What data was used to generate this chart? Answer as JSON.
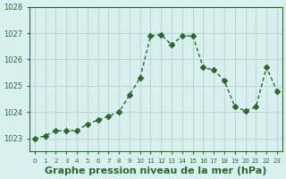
{
  "x": [
    0,
    1,
    2,
    3,
    4,
    5,
    6,
    7,
    8,
    9,
    10,
    11,
    12,
    13,
    14,
    15,
    16,
    17,
    18,
    19,
    20,
    21,
    22,
    23
  ],
  "y": [
    1023.0,
    1023.1,
    1023.3,
    1023.3,
    1023.3,
    1023.55,
    1023.7,
    1023.85,
    1024.0,
    1024.65,
    1025.3,
    1026.9,
    1026.95,
    1026.55,
    1026.9,
    1026.9,
    1025.7,
    1025.6,
    1025.2,
    1024.2,
    1024.05,
    1024.2,
    1025.7,
    1024.8
  ],
  "line_color": "#2d6b2d",
  "marker": "D",
  "marker_size": 3,
  "bg_color": "#d8f0f0",
  "grid_color": "#c0d8d8",
  "xlabel": "Graphe pression niveau de la mer (hPa)",
  "xlabel_fontsize": 8,
  "xlabel_color": "#2d6b2d",
  "tick_color": "#2d6b2d",
  "ylim": [
    1022.5,
    1027.5
  ],
  "yticks": [
    1023,
    1024,
    1025,
    1026,
    1027,
    1028
  ],
  "xlim": [
    -0.5,
    23.5
  ],
  "xticks": [
    0,
    1,
    2,
    3,
    4,
    5,
    6,
    7,
    8,
    9,
    10,
    11,
    12,
    13,
    14,
    15,
    16,
    17,
    18,
    19,
    20,
    21,
    22,
    23
  ],
  "spine_color": "#2d6b2d",
  "border_color": "#4a7a4a"
}
